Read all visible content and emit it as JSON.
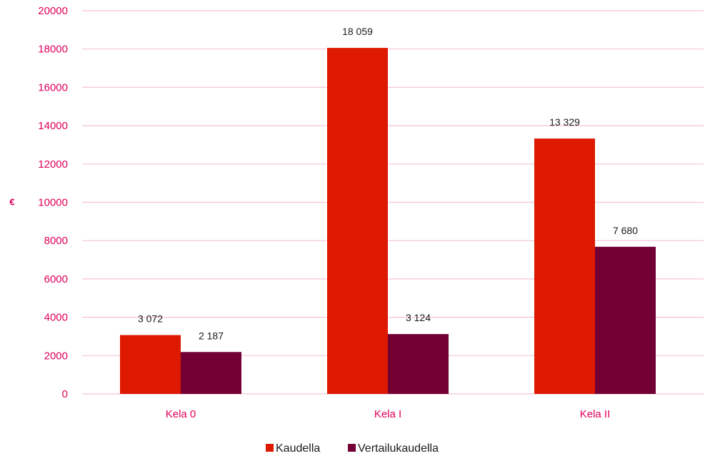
{
  "chart_data": {
    "type": "bar",
    "categories": [
      "Kela 0",
      "Kela I",
      "Kela II"
    ],
    "series": [
      {
        "name": "Kaudella",
        "values": [
          3072,
          18059,
          13329
        ],
        "labels": [
          "3 072",
          "18 059",
          "13 329"
        ],
        "color": "#dd1900"
      },
      {
        "name": "Vertailukaudella",
        "values": [
          2187,
          3124,
          7680
        ],
        "labels": [
          "2 187",
          "3 124",
          "7 680"
        ],
        "color": "#720033"
      }
    ],
    "ylabel": "€",
    "ylim": [
      0,
      20000
    ],
    "yticks": [
      0,
      2000,
      4000,
      6000,
      8000,
      10000,
      12000,
      14000,
      16000,
      18000,
      20000
    ],
    "grid": true,
    "legend": "bottom-center",
    "colors": {
      "axis_text": "#e0005a",
      "grid": "#f7c2d6",
      "text": "#1a1a1a"
    }
  }
}
